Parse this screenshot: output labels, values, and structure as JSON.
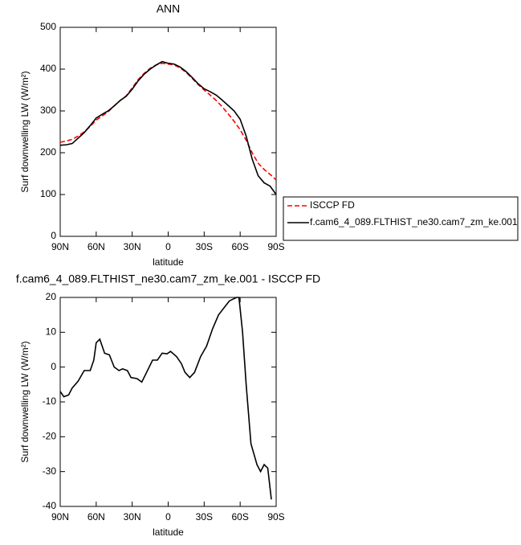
{
  "chart_data": [
    {
      "type": "line",
      "title": "ANN",
      "xlabel": "latitude",
      "ylabel": "Surf downwelling LW (W/m²)",
      "x": [
        90,
        85,
        80,
        75,
        70,
        65,
        60,
        55,
        50,
        45,
        40,
        35,
        30,
        25,
        20,
        15,
        10,
        5,
        0,
        -5,
        -10,
        -15,
        -20,
        -25,
        -30,
        -35,
        -40,
        -45,
        -50,
        -55,
        -60,
        -65,
        -70,
        -75,
        -80,
        -85,
        -90
      ],
      "series": [
        {
          "name": "ISCCP FD",
          "color": "#ff0000",
          "dash": true,
          "values": [
            225,
            228,
            232,
            240,
            250,
            263,
            278,
            288,
            298,
            312,
            325,
            336,
            355,
            375,
            390,
            402,
            410,
            414,
            412,
            410,
            403,
            392,
            378,
            363,
            350,
            338,
            325,
            310,
            293,
            275,
            255,
            230,
            200,
            175,
            160,
            148,
            135
          ]
        },
        {
          "name": "f.cam6_4_089.FLTHIST_ne30.cam7_zm_ke.001",
          "color": "#000000",
          "dash": false,
          "values": [
            218,
            219,
            222,
            235,
            248,
            265,
            283,
            292,
            300,
            312,
            325,
            335,
            352,
            372,
            388,
            400,
            410,
            418,
            414,
            412,
            405,
            394,
            380,
            365,
            353,
            346,
            338,
            326,
            313,
            300,
            280,
            240,
            185,
            145,
            128,
            120,
            100
          ]
        }
      ],
      "xlim": [
        90,
        -90
      ],
      "xticks": [
        {
          "value": 90,
          "label": "90N"
        },
        {
          "value": 60,
          "label": "60N"
        },
        {
          "value": 30,
          "label": "30N"
        },
        0,
        {
          "value": -30,
          "label": "30S"
        },
        {
          "value": -60,
          "label": "60S"
        },
        {
          "value": -90,
          "label": "90S"
        }
      ],
      "ylim": [
        0,
        500
      ],
      "yticks": [
        0,
        100,
        200,
        300,
        400,
        500
      ],
      "legend": "right"
    },
    {
      "type": "line",
      "title": "f.cam6_4_089.FLTHIST_ne30.cam7_zm_ke.001 - ISCCP FD",
      "xlabel": "latitude",
      "ylabel": "Surf downwelling LW (W/m²)",
      "x": [
        90,
        87,
        83,
        80,
        75,
        70,
        65,
        62,
        60,
        57,
        53,
        49,
        45,
        41,
        38,
        34,
        31,
        26,
        22,
        13,
        9,
        5,
        1,
        -2,
        -7,
        -11,
        -14,
        -18,
        -22,
        -27,
        -32,
        -37,
        -42,
        -51,
        -57,
        -59,
        -62,
        -65,
        -69,
        -74,
        -77,
        -80,
        -83,
        -86
      ],
      "values": [
        -7,
        -8.5,
        -8,
        -6,
        -4,
        -1,
        -1,
        2,
        7,
        8,
        4,
        3.5,
        0,
        -1,
        -0.5,
        -1,
        -3,
        -3.3,
        -4.3,
        2,
        2,
        4,
        3.8,
        4.5,
        3,
        1,
        -1.5,
        -3,
        -1.5,
        3,
        6,
        11,
        15,
        19,
        20,
        20,
        10,
        -5,
        -22,
        -28,
        -30,
        -28,
        -29,
        -38
      ],
      "color": "#000000",
      "xlim": [
        90,
        -90
      ],
      "xticks": [
        {
          "value": 90,
          "label": "90N"
        },
        {
          "value": 60,
          "label": "60N"
        },
        {
          "value": 30,
          "label": "30N"
        },
        0,
        {
          "value": -30,
          "label": "30S"
        },
        {
          "value": -60,
          "label": "60S"
        },
        {
          "value": -90,
          "label": "90S"
        }
      ],
      "ylim": [
        -40,
        20
      ],
      "yticks": [
        -40,
        -30,
        -20,
        -10,
        0,
        10,
        20
      ]
    }
  ]
}
